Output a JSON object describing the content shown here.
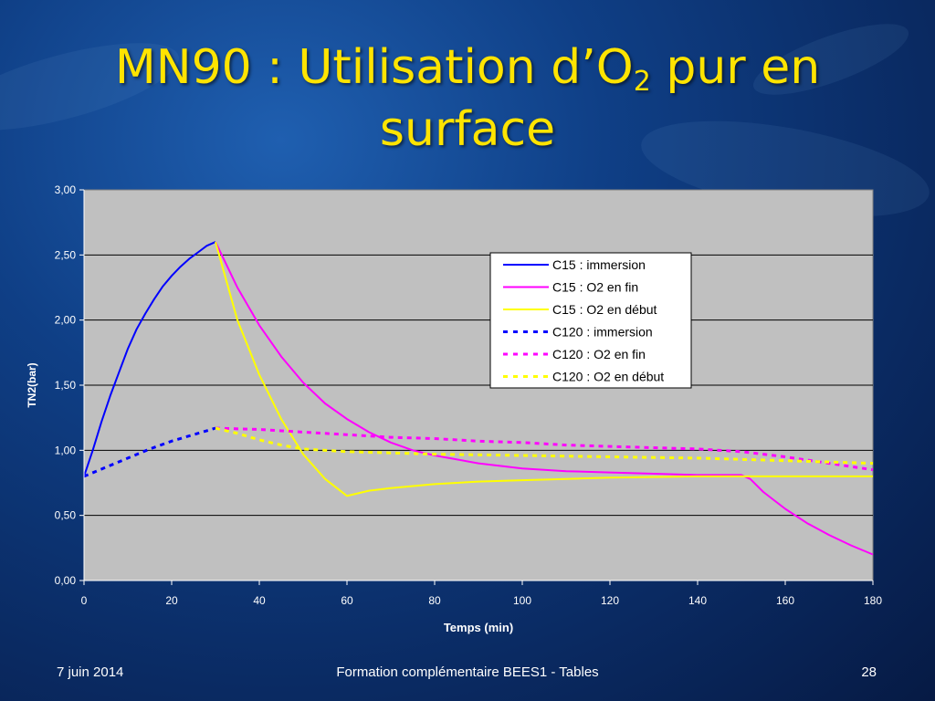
{
  "slide": {
    "title_main": "MN90 : Utilisation d’O",
    "title_sub": "2",
    "title_end": " pur en surface"
  },
  "footer": {
    "date": "7 juin 2014",
    "center": "Formation complémentaire BEES1 - Tables",
    "page": "28"
  },
  "chart_data": {
    "type": "line",
    "xlabel": "Temps (min)",
    "ylabel": "TN2(bar)",
    "xlim": [
      0,
      180
    ],
    "ylim": [
      0,
      3
    ],
    "x_ticks": [
      0,
      20,
      40,
      60,
      80,
      100,
      120,
      140,
      160,
      180
    ],
    "y_ticks": [
      "0,00",
      "0,50",
      "1,00",
      "1,50",
      "2,00",
      "2,50",
      "3,00"
    ],
    "grid": "horizontal",
    "legend_position": "top-right",
    "plot_background": "#c0c0c0",
    "series": [
      {
        "name": "C15 : immersion",
        "color": "#0000ff",
        "dash": "solid",
        "points": [
          [
            0,
            0.8
          ],
          [
            2,
            1.0
          ],
          [
            4,
            1.22
          ],
          [
            6,
            1.42
          ],
          [
            8,
            1.6
          ],
          [
            10,
            1.78
          ],
          [
            12,
            1.93
          ],
          [
            14,
            2.05
          ],
          [
            16,
            2.16
          ],
          [
            18,
            2.26
          ],
          [
            20,
            2.34
          ],
          [
            22,
            2.41
          ],
          [
            24,
            2.47
          ],
          [
            26,
            2.52
          ],
          [
            28,
            2.57
          ],
          [
            30,
            2.6
          ]
        ]
      },
      {
        "name": "C15 : O2 en fin",
        "color": "#ff00ff",
        "dash": "solid",
        "points": [
          [
            30,
            2.6
          ],
          [
            35,
            2.25
          ],
          [
            40,
            1.96
          ],
          [
            45,
            1.72
          ],
          [
            50,
            1.52
          ],
          [
            55,
            1.36
          ],
          [
            60,
            1.24
          ],
          [
            65,
            1.14
          ],
          [
            70,
            1.06
          ],
          [
            75,
            1.0
          ],
          [
            80,
            0.96
          ],
          [
            90,
            0.9
          ],
          [
            100,
            0.86
          ],
          [
            110,
            0.84
          ],
          [
            120,
            0.83
          ],
          [
            130,
            0.82
          ],
          [
            140,
            0.81
          ],
          [
            150,
            0.81
          ],
          [
            152,
            0.78
          ],
          [
            155,
            0.68
          ],
          [
            160,
            0.55
          ],
          [
            165,
            0.44
          ],
          [
            170,
            0.35
          ],
          [
            175,
            0.27
          ],
          [
            180,
            0.2
          ]
        ]
      },
      {
        "name": "C15 : O2 en début",
        "color": "#ffff00",
        "dash": "solid",
        "points": [
          [
            30,
            2.6
          ],
          [
            35,
            2.0
          ],
          [
            40,
            1.58
          ],
          [
            45,
            1.24
          ],
          [
            50,
            0.97
          ],
          [
            55,
            0.78
          ],
          [
            60,
            0.65
          ],
          [
            65,
            0.69
          ],
          [
            70,
            0.71
          ],
          [
            80,
            0.74
          ],
          [
            90,
            0.76
          ],
          [
            100,
            0.77
          ],
          [
            110,
            0.78
          ],
          [
            120,
            0.79
          ],
          [
            140,
            0.8
          ],
          [
            160,
            0.8
          ],
          [
            180,
            0.8
          ]
        ]
      },
      {
        "name": "C120 : immersion",
        "color": "#0000ff",
        "dash": "dashed",
        "points": [
          [
            0,
            0.8
          ],
          [
            5,
            0.87
          ],
          [
            10,
            0.94
          ],
          [
            15,
            1.01
          ],
          [
            20,
            1.07
          ],
          [
            25,
            1.12
          ],
          [
            30,
            1.17
          ]
        ]
      },
      {
        "name": "C120 : O2 en fin",
        "color": "#ff00ff",
        "dash": "dashed",
        "points": [
          [
            30,
            1.17
          ],
          [
            40,
            1.16
          ],
          [
            50,
            1.14
          ],
          [
            60,
            1.12
          ],
          [
            70,
            1.1
          ],
          [
            80,
            1.09
          ],
          [
            90,
            1.07
          ],
          [
            100,
            1.06
          ],
          [
            110,
            1.04
          ],
          [
            120,
            1.03
          ],
          [
            130,
            1.02
          ],
          [
            140,
            1.01
          ],
          [
            150,
            0.99
          ],
          [
            155,
            0.97
          ],
          [
            160,
            0.95
          ],
          [
            170,
            0.9
          ],
          [
            180,
            0.85
          ]
        ]
      },
      {
        "name": "C120 : O2 en début",
        "color": "#ffff00",
        "dash": "dashed",
        "points": [
          [
            30,
            1.17
          ],
          [
            35,
            1.13
          ],
          [
            40,
            1.08
          ],
          [
            45,
            1.04
          ],
          [
            50,
            1.01
          ],
          [
            60,
            0.99
          ],
          [
            70,
            0.98
          ],
          [
            80,
            0.97
          ],
          [
            100,
            0.96
          ],
          [
            120,
            0.95
          ],
          [
            140,
            0.94
          ],
          [
            160,
            0.92
          ],
          [
            180,
            0.9
          ]
        ]
      }
    ]
  }
}
